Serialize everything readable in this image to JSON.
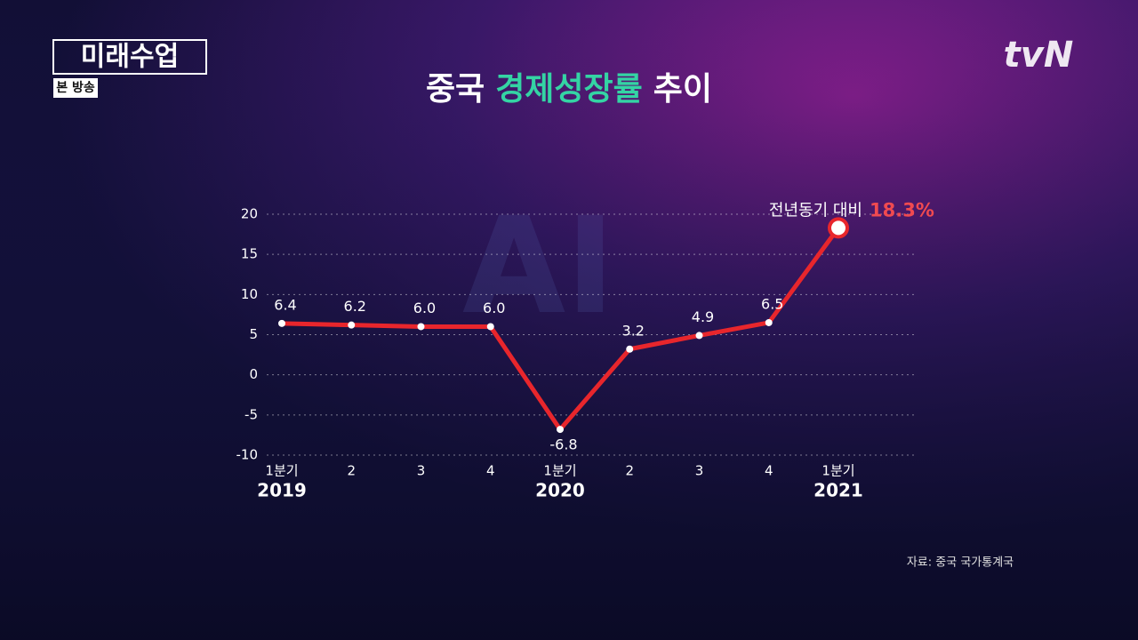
{
  "logo": {
    "name": "미래수업",
    "tag": "본 방송"
  },
  "channel": "tvN",
  "source": "자료: 중국 국가통계국",
  "chart_data": {
    "type": "line",
    "title_parts": [
      {
        "text": "중국",
        "color": "#ffffff"
      },
      {
        "text": "경제성장률",
        "color": "#34d4a4"
      },
      {
        "text": "추이",
        "color": "#ffffff"
      }
    ],
    "categories": [
      "1분기",
      "2",
      "3",
      "4",
      "1분기",
      "2",
      "3",
      "4",
      "1분기"
    ],
    "year_labels": [
      "2019",
      null,
      null,
      null,
      "2020",
      null,
      null,
      null,
      "2021"
    ],
    "series": [
      {
        "color": "#e8262c",
        "values": [
          6.4,
          6.2,
          6.0,
          6.0,
          -6.8,
          3.2,
          4.9,
          6.5,
          18.3
        ],
        "value_labels": [
          "6.4",
          "6.2",
          "6.0",
          "6.0",
          "-6.8",
          "3.2",
          "4.9",
          "6.5",
          "18.3%"
        ]
      }
    ],
    "annotation": "전년동기 대비",
    "ylim": [
      -10,
      20
    ],
    "yticks": [
      -10,
      -5,
      0,
      5,
      10,
      15,
      20
    ],
    "grid": true
  }
}
